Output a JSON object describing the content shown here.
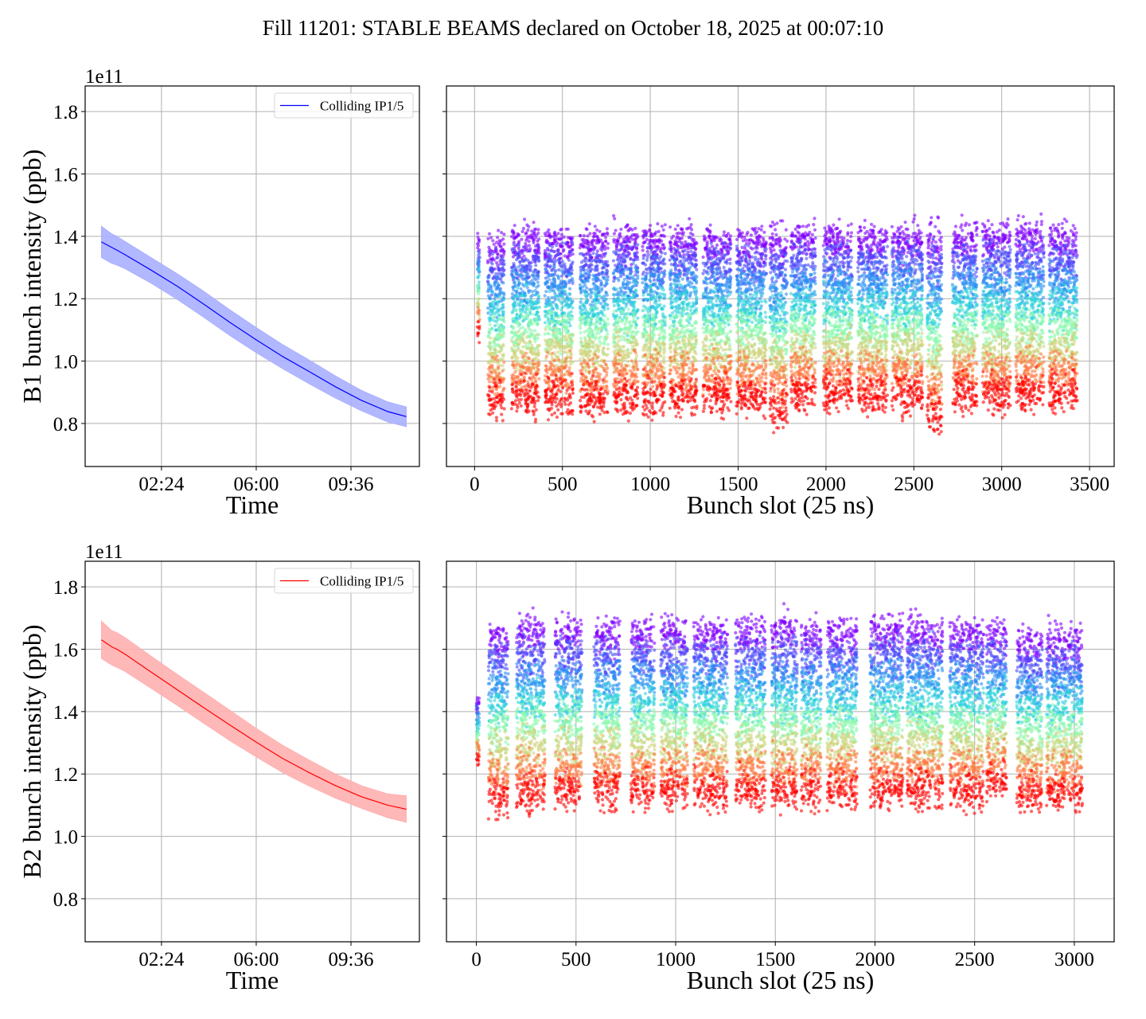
{
  "figure_title": "Fill 11201: STABLE BEAMS declared on October 18, 2025 at 00:07:10",
  "chart_data": [
    {
      "id": "b1-time",
      "type": "line",
      "title": "",
      "xlabel": "Time",
      "ylabel": "B1 bunch intensity (ppb)",
      "y_offset_label": "1e11",
      "x_unit": "hours since 00:00",
      "xlim": [
        -0.5,
        12.2
      ],
      "ylim": [
        0.662,
        1.882
      ],
      "xticks": [
        2.4,
        6.0,
        9.6
      ],
      "xtick_labels": [
        "02:24",
        "06:00",
        "09:36"
      ],
      "yticks": [
        0.8,
        1.0,
        1.2,
        1.4,
        1.6,
        1.8
      ],
      "ytick_labels": [
        "0.8",
        "1.0",
        "1.2",
        "1.4",
        "1.6",
        "1.8"
      ],
      "grid": true,
      "legend": {
        "placement": "top-right",
        "entries": [
          "Colliding IP1/5"
        ]
      },
      "color": "#0000ff",
      "band_color": "#aab0ff",
      "series": [
        {
          "name": "Colliding IP1/5",
          "x": [
            0.12,
            0.5,
            0.7,
            1.0,
            2.0,
            3.0,
            4.0,
            5.0,
            6.0,
            7.0,
            8.0,
            9.0,
            10.0,
            11.0,
            11.7
          ],
          "mean": [
            1.382,
            1.365,
            1.356,
            1.342,
            1.292,
            1.24,
            1.183,
            1.124,
            1.068,
            1.015,
            0.967,
            0.918,
            0.874,
            0.838,
            0.822
          ],
          "upper": [
            1.432,
            1.408,
            1.4,
            1.384,
            1.332,
            1.28,
            1.224,
            1.164,
            1.107,
            1.053,
            1.004,
            0.953,
            0.906,
            0.869,
            0.853
          ],
          "lower": [
            1.332,
            1.314,
            1.308,
            1.297,
            1.25,
            1.198,
            1.141,
            1.082,
            1.027,
            0.976,
            0.928,
            0.882,
            0.841,
            0.805,
            0.79
          ]
        }
      ]
    },
    {
      "id": "b1-slots",
      "type": "scatter",
      "title": "",
      "xlabel": "Bunch slot (25 ns)",
      "ylabel": "",
      "xlim": [
        -160,
        3640
      ],
      "ylim": [
        0.662,
        1.882
      ],
      "xticks": [
        0,
        500,
        1000,
        1500,
        2000,
        2500,
        3000,
        3500
      ],
      "xtick_labels": [
        "0",
        "500",
        "1000",
        "1500",
        "2000",
        "2500",
        "3000",
        "3500"
      ],
      "yticks": [
        0.8,
        1.0,
        1.2,
        1.4,
        1.6,
        1.8
      ],
      "grid": true,
      "colormap": "rainbow (violet = start of fill, red = end of fill)",
      "time_snapshots": 8,
      "trains": [
        {
          "start": 15,
          "end": 30,
          "top": 1.4,
          "bottom": 1.07
        },
        {
          "start": 75,
          "end": 170,
          "top": 1.4,
          "bottom": 0.83
        },
        {
          "start": 210,
          "end": 370,
          "top": 1.42,
          "bottom": 0.84
        },
        {
          "start": 400,
          "end": 560,
          "top": 1.42,
          "bottom": 0.84
        },
        {
          "start": 600,
          "end": 760,
          "top": 1.42,
          "bottom": 0.83
        },
        {
          "start": 790,
          "end": 930,
          "top": 1.43,
          "bottom": 0.84
        },
        {
          "start": 955,
          "end": 1085,
          "top": 1.43,
          "bottom": 0.84
        },
        {
          "start": 1110,
          "end": 1265,
          "top": 1.43,
          "bottom": 0.84
        },
        {
          "start": 1300,
          "end": 1460,
          "top": 1.42,
          "bottom": 0.84
        },
        {
          "start": 1490,
          "end": 1660,
          "top": 1.42,
          "bottom": 0.84
        },
        {
          "start": 1680,
          "end": 1780,
          "top": 1.42,
          "bottom": 0.8
        },
        {
          "start": 1800,
          "end": 1940,
          "top": 1.43,
          "bottom": 0.85
        },
        {
          "start": 1985,
          "end": 2150,
          "top": 1.43,
          "bottom": 0.85
        },
        {
          "start": 2180,
          "end": 2350,
          "top": 1.43,
          "bottom": 0.85
        },
        {
          "start": 2375,
          "end": 2550,
          "top": 1.43,
          "bottom": 0.85
        },
        {
          "start": 2575,
          "end": 2660,
          "top": 1.43,
          "bottom": 0.78
        },
        {
          "start": 2720,
          "end": 2860,
          "top": 1.43,
          "bottom": 0.85
        },
        {
          "start": 2890,
          "end": 3050,
          "top": 1.44,
          "bottom": 0.84
        },
        {
          "start": 3080,
          "end": 3240,
          "top": 1.44,
          "bottom": 0.85
        },
        {
          "start": 3270,
          "end": 3430,
          "top": 1.43,
          "bottom": 0.85
        }
      ]
    },
    {
      "id": "b2-time",
      "type": "line",
      "title": "",
      "xlabel": "Time",
      "ylabel": "B2 bunch intensity (ppb)",
      "y_offset_label": "1e11",
      "x_unit": "hours since 00:00",
      "xlim": [
        -0.5,
        12.2
      ],
      "ylim": [
        0.662,
        1.882
      ],
      "xticks": [
        2.4,
        6.0,
        9.6
      ],
      "xtick_labels": [
        "02:24",
        "06:00",
        "09:36"
      ],
      "yticks": [
        0.8,
        1.0,
        1.2,
        1.4,
        1.6,
        1.8
      ],
      "ytick_labels": [
        "0.8",
        "1.0",
        "1.2",
        "1.4",
        "1.6",
        "1.8"
      ],
      "grid": true,
      "legend": {
        "placement": "top-right",
        "entries": [
          "Colliding IP1/5"
        ]
      },
      "color": "#ff0000",
      "band_color": "#ffb0b0",
      "series": [
        {
          "name": "Colliding IP1/5",
          "x": [
            0.12,
            0.5,
            0.7,
            1.0,
            2.0,
            3.0,
            4.0,
            5.0,
            6.0,
            7.0,
            8.0,
            9.0,
            10.0,
            11.0,
            11.7
          ],
          "mean": [
            1.63,
            1.608,
            1.6,
            1.585,
            1.527,
            1.47,
            1.413,
            1.357,
            1.302,
            1.25,
            1.205,
            1.163,
            1.127,
            1.1,
            1.087
          ],
          "upper": [
            1.69,
            1.66,
            1.653,
            1.638,
            1.578,
            1.519,
            1.462,
            1.404,
            1.346,
            1.292,
            1.245,
            1.2,
            1.162,
            1.136,
            1.13
          ],
          "lower": [
            1.57,
            1.55,
            1.542,
            1.53,
            1.475,
            1.42,
            1.363,
            1.307,
            1.255,
            1.205,
            1.162,
            1.123,
            1.09,
            1.06,
            1.045
          ]
        }
      ]
    },
    {
      "id": "b2-slots",
      "type": "scatter",
      "title": "",
      "xlabel": "Bunch slot (25 ns)",
      "ylabel": "",
      "xlim": [
        -150,
        3200
      ],
      "ylim": [
        0.662,
        1.882
      ],
      "xticks": [
        0,
        500,
        1000,
        1500,
        2000,
        2500,
        3000
      ],
      "xtick_labels": [
        "0",
        "500",
        "1000",
        "1500",
        "2000",
        "2500",
        "3000"
      ],
      "yticks": [
        0.8,
        1.0,
        1.2,
        1.4,
        1.6,
        1.8
      ],
      "grid": true,
      "colormap": "rainbow (violet = start of fill, red = end of fill)",
      "time_snapshots": 8,
      "trains": [
        {
          "start": 0,
          "end": 15,
          "top": 1.45,
          "bottom": 1.23
        },
        {
          "start": 60,
          "end": 160,
          "top": 1.68,
          "bottom": 1.08
        },
        {
          "start": 200,
          "end": 345,
          "top": 1.7,
          "bottom": 1.09
        },
        {
          "start": 395,
          "end": 530,
          "top": 1.69,
          "bottom": 1.1
        },
        {
          "start": 590,
          "end": 720,
          "top": 1.69,
          "bottom": 1.1
        },
        {
          "start": 775,
          "end": 895,
          "top": 1.69,
          "bottom": 1.1
        },
        {
          "start": 925,
          "end": 1060,
          "top": 1.69,
          "bottom": 1.1
        },
        {
          "start": 1090,
          "end": 1260,
          "top": 1.69,
          "bottom": 1.1
        },
        {
          "start": 1300,
          "end": 1450,
          "top": 1.69,
          "bottom": 1.1
        },
        {
          "start": 1480,
          "end": 1610,
          "top": 1.7,
          "bottom": 1.1
        },
        {
          "start": 1630,
          "end": 1730,
          "top": 1.68,
          "bottom": 1.1
        },
        {
          "start": 1760,
          "end": 1910,
          "top": 1.69,
          "bottom": 1.1
        },
        {
          "start": 1975,
          "end": 2140,
          "top": 1.7,
          "bottom": 1.1
        },
        {
          "start": 2160,
          "end": 2340,
          "top": 1.7,
          "bottom": 1.1
        },
        {
          "start": 2375,
          "end": 2545,
          "top": 1.69,
          "bottom": 1.1
        },
        {
          "start": 2560,
          "end": 2660,
          "top": 1.68,
          "bottom": 1.13
        },
        {
          "start": 2710,
          "end": 2840,
          "top": 1.66,
          "bottom": 1.09
        },
        {
          "start": 2860,
          "end": 3040,
          "top": 1.67,
          "bottom": 1.09
        }
      ]
    }
  ]
}
